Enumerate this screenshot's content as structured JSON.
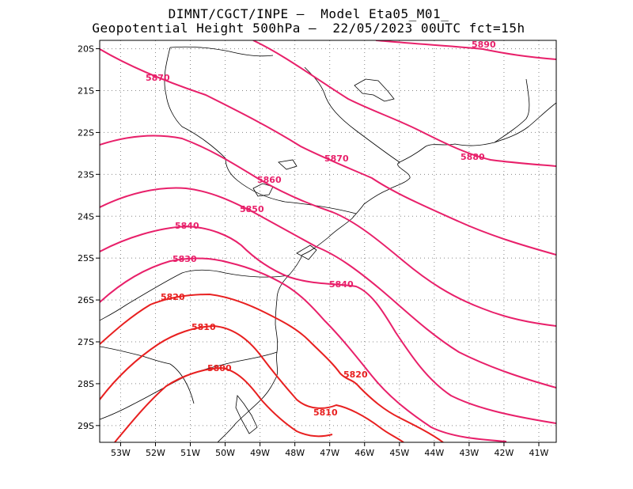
{
  "title": {
    "line1": "DIMNT/CGCT/INPE –  Model Eta05_M01_",
    "line2": "Geopotential Height 500hPa –  22/05/2023 00UTC fct=15h"
  },
  "map_extent": {
    "lon": [
      -53.6,
      -40.5
    ],
    "lat": [
      -29.4,
      -19.8
    ]
  },
  "lon_ticks": [
    "53W",
    "52W",
    "51W",
    "50W",
    "49W",
    "48W",
    "47W",
    "46W",
    "45W",
    "44W",
    "43W",
    "42W",
    "41W"
  ],
  "lat_ticks": [
    "20S",
    "21S",
    "22S",
    "23S",
    "24S",
    "25S",
    "26S",
    "27S",
    "28S",
    "29S"
  ],
  "colors": {
    "contour_high": "#e8206a",
    "contour_low": "#e82020",
    "coast": "#000000",
    "grid": "#888888"
  },
  "contour_labels": [
    {
      "text": "5890",
      "color": "#e8206a"
    },
    {
      "text": "5880",
      "color": "#e8206a"
    },
    {
      "text": "5870",
      "color": "#e8206a"
    },
    {
      "text": "5870",
      "color": "#e8206a"
    },
    {
      "text": "5860",
      "color": "#e8206a"
    },
    {
      "text": "5850",
      "color": "#e8206a"
    },
    {
      "text": "5840",
      "color": "#e8206a"
    },
    {
      "text": "5840",
      "color": "#e8206a"
    },
    {
      "text": "5830",
      "color": "#e8206a"
    },
    {
      "text": "5820",
      "color": "#e82020"
    },
    {
      "text": "5820",
      "color": "#e82020"
    },
    {
      "text": "5810",
      "color": "#e82020"
    },
    {
      "text": "5810",
      "color": "#e82020"
    },
    {
      "text": "5800",
      "color": "#e82020"
    }
  ]
}
